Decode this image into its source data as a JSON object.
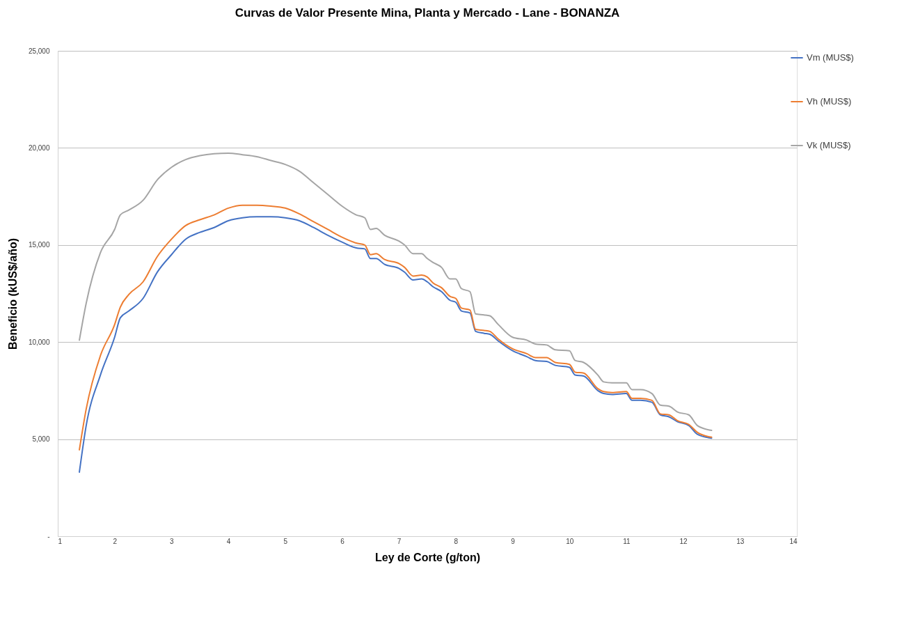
{
  "chart_data": {
    "type": "line",
    "title": "Curvas de Valor Presente Mina, Planta y Mercado - Lane - BONANZA",
    "xlabel": "Ley de Corte (g/ton)",
    "ylabel": "Beneficio (kUS$/año)",
    "x": [
      1.38,
      1.5,
      1.75,
      2,
      2.1,
      2.25,
      2.5,
      2.75,
      3,
      3.25,
      3.5,
      3.75,
      4,
      4.25,
      4.5,
      4.75,
      5,
      5.25,
      5.5,
      5.75,
      6,
      6.25,
      6.4,
      6.5,
      6.6,
      6.75,
      7,
      7.1,
      7.25,
      7.4,
      7.5,
      7.6,
      7.75,
      7.9,
      8,
      8.1,
      8.25,
      8.35,
      8.5,
      8.6,
      8.75,
      9,
      9.25,
      9.4,
      9.6,
      9.75,
      10,
      10.1,
      10.25,
      10.5,
      10.6,
      10.75,
      11,
      11.1,
      11.25,
      11.45,
      11.6,
      11.75,
      11.9,
      12.1,
      12.25,
      12.5
    ],
    "series": [
      {
        "name": "Vm (MUS$)",
        "color": "#4472c4",
        "values": [
          3300,
          5700,
          8300,
          10250,
          11250,
          11600,
          12250,
          13600,
          14500,
          15300,
          15650,
          15900,
          16250,
          16400,
          16450,
          16450,
          16400,
          16250,
          15900,
          15500,
          15150,
          14850,
          14800,
          14300,
          14300,
          14000,
          13800,
          13600,
          13200,
          13250,
          13100,
          12850,
          12600,
          12150,
          12050,
          11600,
          11500,
          10550,
          10450,
          10400,
          10050,
          9550,
          9250,
          9050,
          9000,
          8800,
          8700,
          8300,
          8250,
          7500,
          7350,
          7300,
          7350,
          7000,
          7000,
          6900,
          6250,
          6150,
          5900,
          5700,
          5250,
          5050
        ]
      },
      {
        "name": "Vh (MUS$)",
        "color": "#ed7d31",
        "values": [
          4450,
          6550,
          9300,
          10900,
          11800,
          12450,
          13100,
          14400,
          15300,
          16000,
          16300,
          16550,
          16900,
          17050,
          17050,
          17000,
          16900,
          16600,
          16200,
          15800,
          15400,
          15100,
          15000,
          14500,
          14550,
          14250,
          14050,
          13850,
          13400,
          13450,
          13350,
          13050,
          12800,
          12350,
          12250,
          11750,
          11650,
          10650,
          10600,
          10550,
          10150,
          9650,
          9400,
          9200,
          9200,
          8950,
          8850,
          8450,
          8400,
          7600,
          7450,
          7400,
          7450,
          7100,
          7100,
          7000,
          6300,
          6250,
          5950,
          5750,
          5350,
          5100
        ]
      },
      {
        "name": "Vk (MUS$)",
        "color": "#a5a5a5",
        "values": [
          10100,
          12000,
          14600,
          15800,
          16550,
          16800,
          17300,
          18350,
          19000,
          19400,
          19600,
          19700,
          19730,
          19650,
          19550,
          19350,
          19150,
          18800,
          18200,
          17600,
          17000,
          16550,
          16400,
          15800,
          15850,
          15500,
          15200,
          15000,
          14550,
          14550,
          14300,
          14100,
          13850,
          13250,
          13250,
          12750,
          12600,
          11450,
          11400,
          11350,
          10900,
          10250,
          10100,
          9900,
          9850,
          9600,
          9550,
          9050,
          8950,
          8300,
          7950,
          7900,
          7900,
          7550,
          7550,
          7350,
          6750,
          6700,
          6400,
          6250,
          5700,
          5450
        ]
      }
    ],
    "xlim": [
      1,
      14
    ],
    "xticks": [
      1,
      2,
      3,
      4,
      5,
      6,
      7,
      8,
      9,
      10,
      11,
      12,
      13,
      14
    ],
    "ylim": [
      0,
      25000
    ],
    "yticks": [
      {
        "value": 0,
        "label": "-"
      },
      {
        "value": 5000,
        "label": "5,000"
      },
      {
        "value": 10000,
        "label": "10,000"
      },
      {
        "value": 15000,
        "label": "15,000"
      },
      {
        "value": 20000,
        "label": "20,000"
      },
      {
        "value": 25000,
        "label": "25,000"
      }
    ],
    "grid": "y",
    "legend": "right",
    "marker": "none",
    "line_style": "solid"
  }
}
